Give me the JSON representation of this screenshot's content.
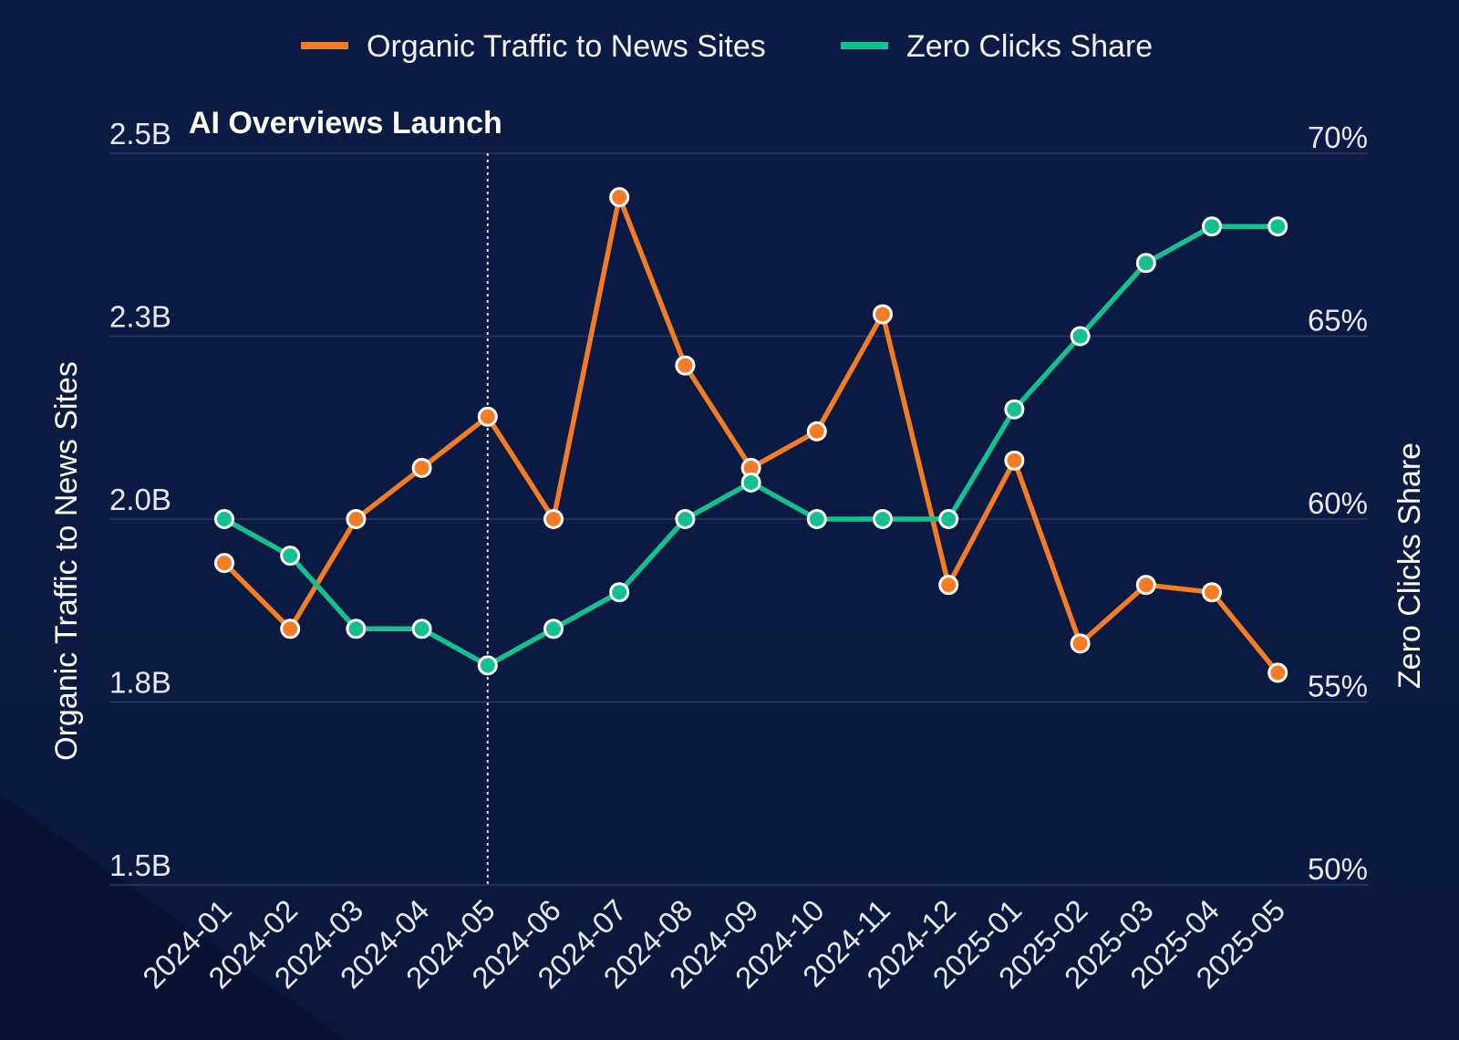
{
  "chart_data": {
    "type": "line",
    "categories": [
      "2024-01",
      "2024-02",
      "2024-03",
      "2024-04",
      "2024-05",
      "2024-06",
      "2024-07",
      "2024-08",
      "2024-09",
      "2024-10",
      "2024-11",
      "2024-12",
      "2025-01",
      "2025-02",
      "2025-03",
      "2025-04",
      "2025-05"
    ],
    "series": [
      {
        "name": "Organic Traffic to News Sites",
        "axis": "left",
        "color": "#f47c25",
        "values": [
          1.94,
          1.85,
          2.0,
          2.07,
          2.14,
          2.0,
          2.44,
          2.21,
          2.07,
          2.12,
          2.28,
          1.91,
          2.08,
          1.83,
          1.91,
          1.9,
          1.79
        ]
      },
      {
        "name": "Zero Clicks Share",
        "axis": "right",
        "color": "#14c08f",
        "values": [
          60.0,
          59.0,
          57.0,
          57.0,
          56.0,
          57.0,
          58.0,
          60.0,
          61.0,
          60.0,
          60.0,
          60.0,
          63.0,
          65.0,
          67.0,
          68.0,
          68.0
        ]
      }
    ],
    "left_axis": {
      "label": "Organic Traffic to News Sites",
      "ylim": [
        1.5,
        2.5
      ],
      "ticks": [
        1.5,
        1.75,
        2.0,
        2.25,
        2.5
      ],
      "tick_labels": [
        "1.5B",
        "1.8B",
        "2.0B",
        "2.3B",
        "2.5B"
      ]
    },
    "right_axis": {
      "label": "Zero Clicks Share",
      "ylim": [
        50,
        70
      ],
      "ticks": [
        50,
        55,
        60,
        65,
        70
      ],
      "tick_labels": [
        "50%",
        "55%",
        "60%",
        "65%",
        "70%"
      ]
    },
    "annotation": {
      "text": "AI Overviews Launch",
      "at_category": "2024-05"
    },
    "legend_position": "top-center",
    "grid": true
  }
}
